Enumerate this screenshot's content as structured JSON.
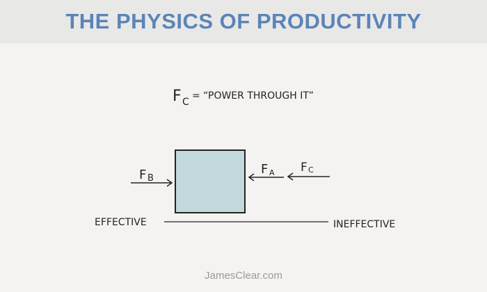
{
  "header": {
    "title": "THE PHYSICS OF PRODUCTIVITY"
  },
  "diagram": {
    "equation": {
      "symbol": "F",
      "subscript": "C",
      "text": "= “POWER THROUGH IT”"
    },
    "forces": [
      {
        "symbol": "F",
        "subscript": "B"
      },
      {
        "symbol": "F",
        "subscript": "A"
      },
      {
        "symbol": "F",
        "subscript": "C"
      }
    ],
    "scale": {
      "left": "EFFECTIVE",
      "right": "INEFFECTIVE"
    },
    "box_color": "#c3d8da"
  },
  "footer": {
    "credit": "JamesClear.com"
  },
  "colors": {
    "title": "#5b84b8",
    "header_bg": "#e8e8e6",
    "background": "#f4f3f1"
  }
}
